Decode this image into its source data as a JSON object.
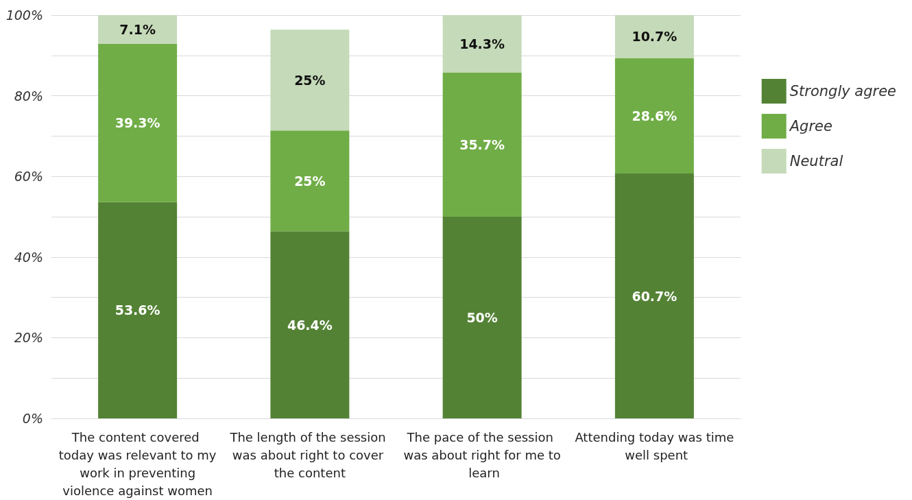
{
  "chart_data": {
    "type": "bar",
    "stacked": true,
    "categories": [
      "The content covered today was relevant to my work in preventing violence against women",
      "The length of the session was about right to cover the content",
      "The pace of the session was about right for me to learn",
      "Attending today was time well spent"
    ],
    "series": [
      {
        "name": "Strongly agree",
        "color": "#548235",
        "values": [
          53.6,
          46.4,
          50,
          60.7
        ],
        "value_labels": [
          "53.6%",
          "46.4%",
          "50%",
          "60.7%"
        ]
      },
      {
        "name": "Agree",
        "color": "#70ad47",
        "values": [
          39.3,
          25,
          35.7,
          28.6
        ],
        "value_labels": [
          "39.3%",
          "25%",
          "35.7%",
          "28.6%"
        ]
      },
      {
        "name": "Neutral",
        "color": "#c5dab8",
        "values": [
          7.1,
          25,
          14.3,
          10.7
        ],
        "value_labels": [
          "7.1%",
          "25%",
          "14.3%",
          "10.7%"
        ]
      }
    ],
    "ylim": [
      0,
      100
    ],
    "yticks": [
      {
        "value": 0,
        "label": "0%"
      },
      {
        "value": 10,
        "label": null
      },
      {
        "value": 20,
        "label": "20%"
      },
      {
        "value": 30,
        "label": null
      },
      {
        "value": 40,
        "label": "40%"
      },
      {
        "value": 50,
        "label": null
      },
      {
        "value": 60,
        "label": "60%"
      },
      {
        "value": 70,
        "label": null
      },
      {
        "value": 80,
        "label": "80%"
      },
      {
        "value": 90,
        "label": null
      },
      {
        "value": 100,
        "label": "100%"
      }
    ],
    "grid": "y",
    "legend": "right"
  }
}
